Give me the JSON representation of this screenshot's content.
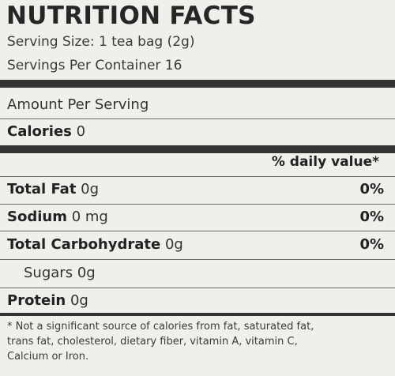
{
  "title": "NUTRITION FACTS",
  "serving_size": "Serving Size: 1 tea bag (2g)",
  "servings_per_container": "Servings Per Container 16",
  "amount_per_serving": "Amount Per Serving",
  "calories": {
    "label": "Calories",
    "value": "0"
  },
  "daily_value_header": "% daily value*",
  "nutrients": [
    {
      "label": "Total Fat",
      "amount": "0g",
      "percent": "0%"
    },
    {
      "label": "Sodium",
      "amount": "0 mg",
      "percent": "0%"
    },
    {
      "label": "Total Carbohydrate",
      "amount": "0g",
      "percent": "0%"
    }
  ],
  "sugars": {
    "label": "Sugars",
    "amount": "0g"
  },
  "protein": {
    "label": "Protein",
    "amount": "0g"
  },
  "footnote_lines": [
    "* Not a significant source of calories from fat, saturated fat,",
    "trans fat, cholesterol, dietary fiber, vitamin A, vitamin C,",
    "Calcium or Iron."
  ]
}
